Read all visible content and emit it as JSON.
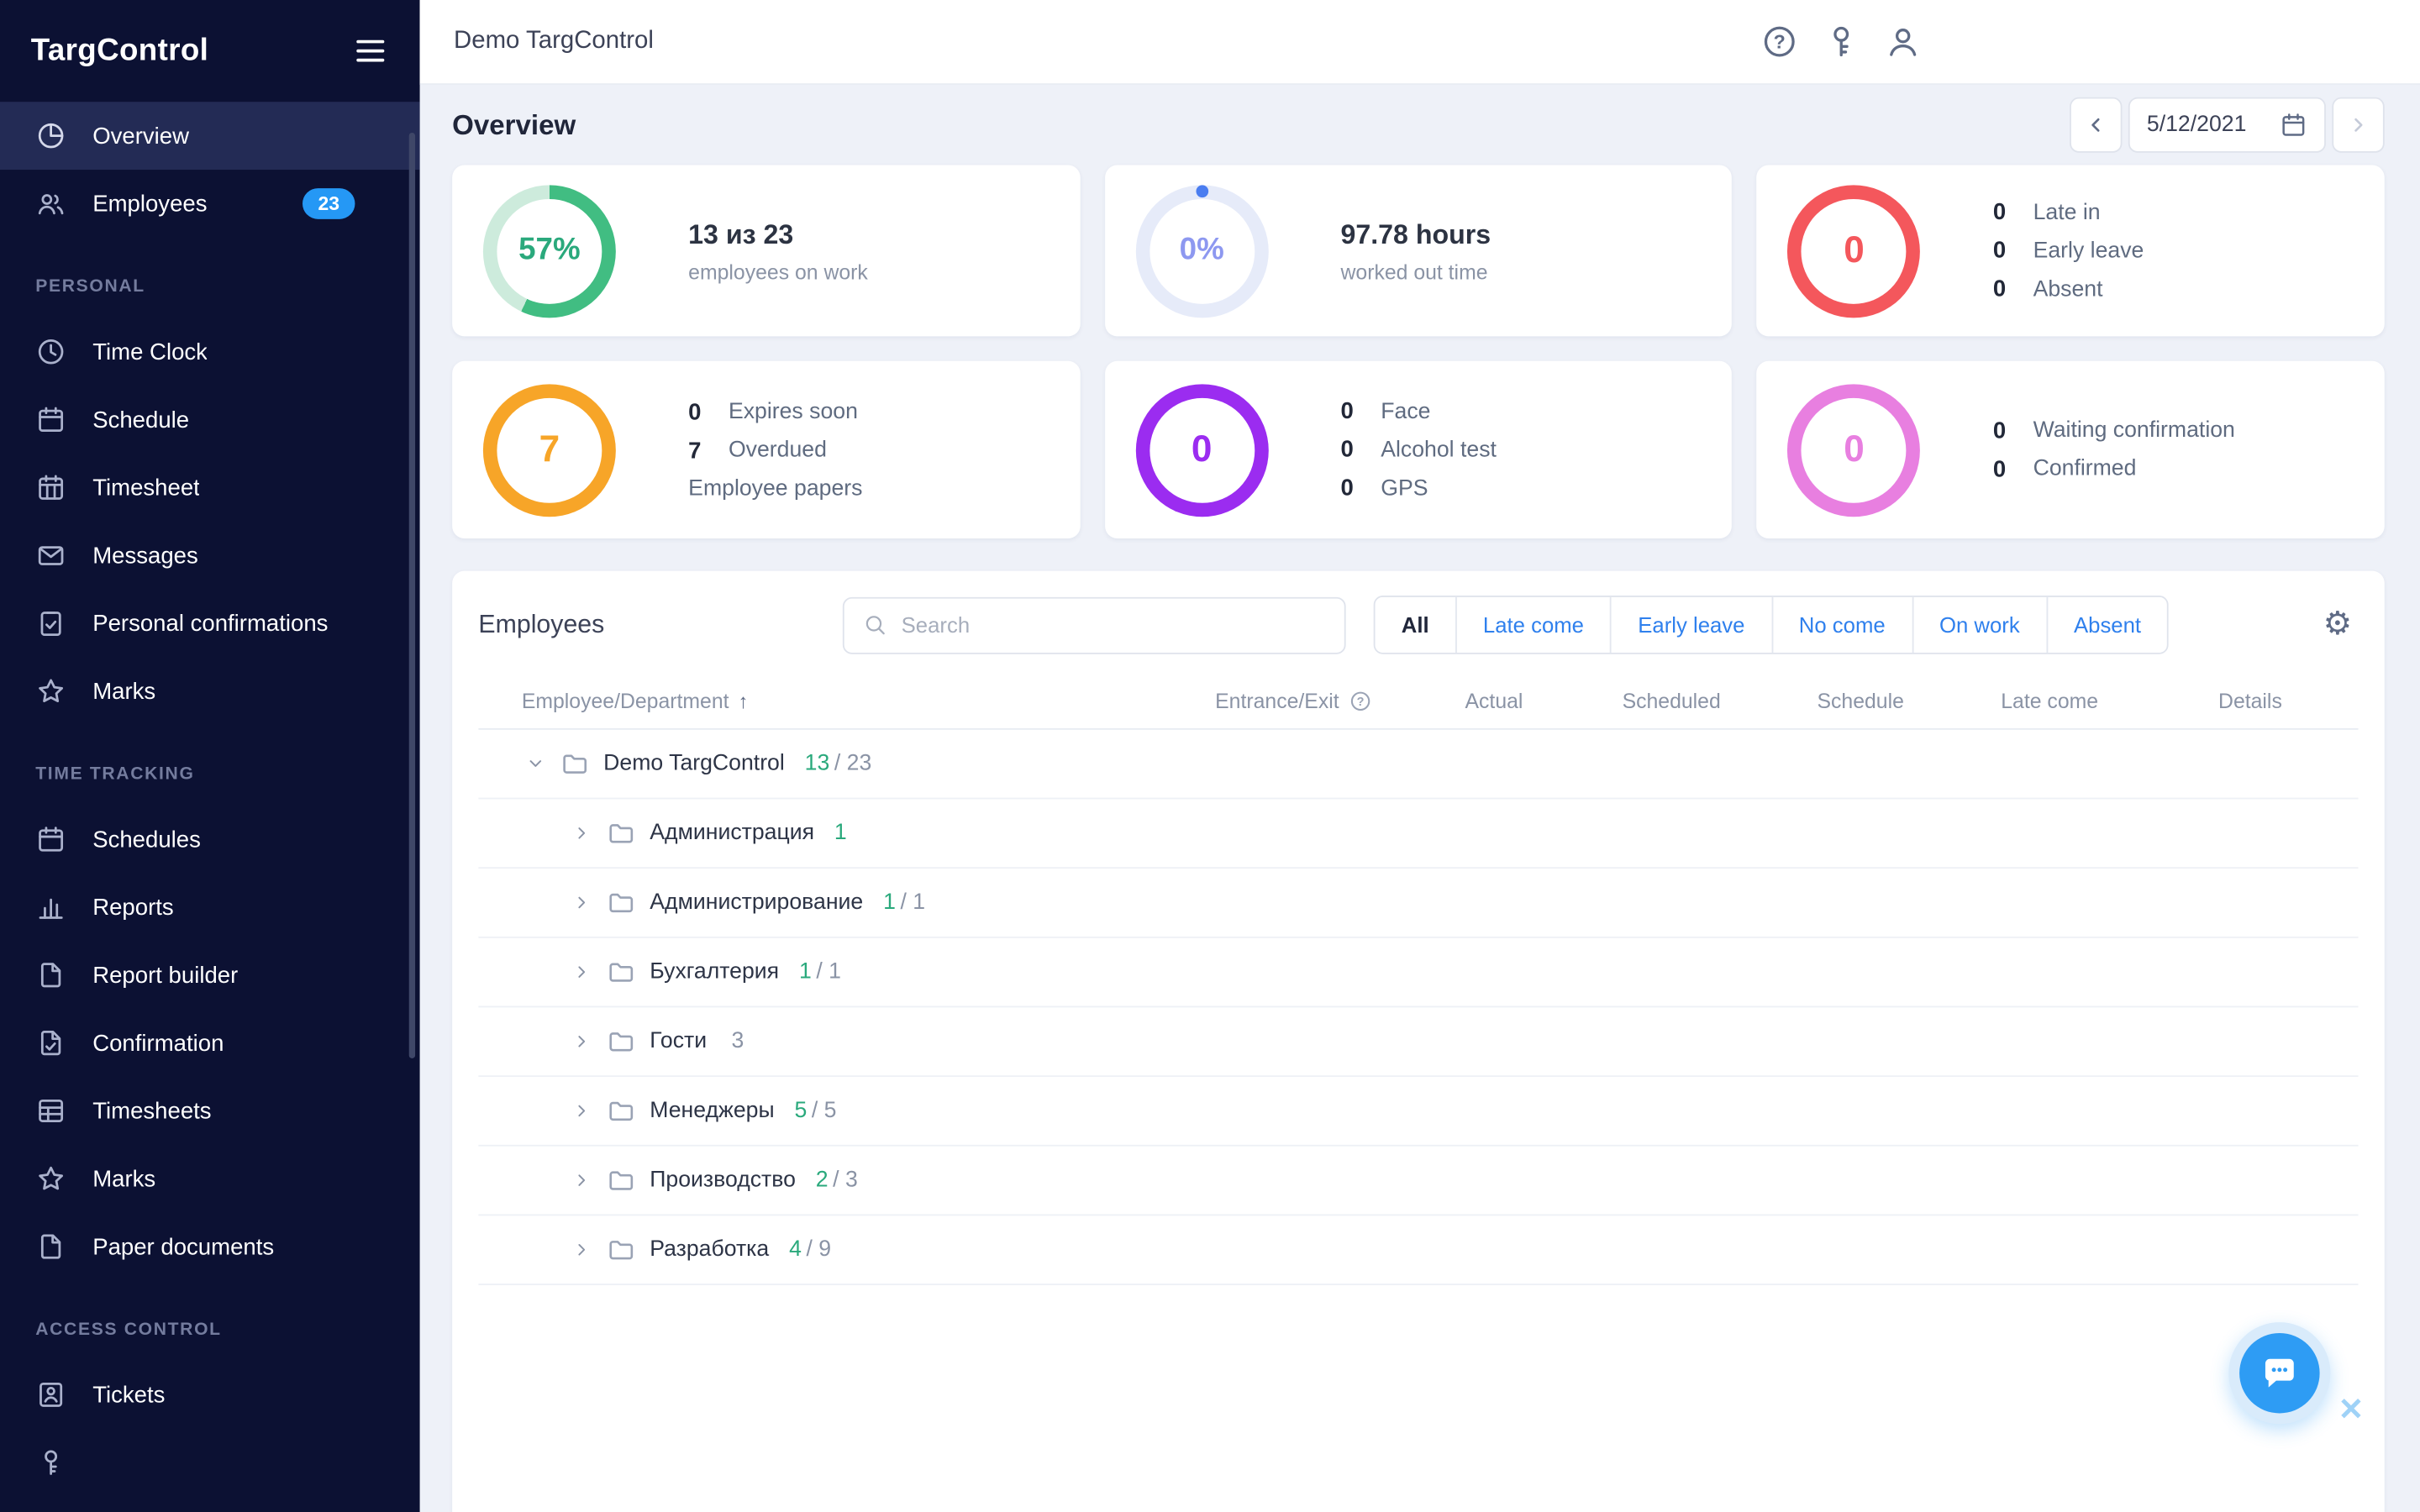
{
  "app": {
    "logo": "TargControl"
  },
  "topbar": {
    "title": "Demo TargControl",
    "icons": [
      "help",
      "key",
      "account"
    ]
  },
  "page": {
    "title": "Overview",
    "date": "5/12/2021"
  },
  "sidebar": {
    "items": [
      {
        "type": "item",
        "icon": "pie-chart",
        "label": "Overview",
        "active": true
      },
      {
        "type": "item",
        "icon": "users",
        "label": "Employees",
        "badge": "23"
      },
      {
        "type": "section",
        "label": "PERSONAL"
      },
      {
        "type": "item",
        "icon": "clock",
        "label": "Time Clock"
      },
      {
        "type": "item",
        "icon": "calendar",
        "label": "Schedule"
      },
      {
        "type": "item",
        "icon": "calendar-grid",
        "label": "Timesheet"
      },
      {
        "type": "item",
        "icon": "envelope",
        "label": "Messages"
      },
      {
        "type": "item",
        "icon": "clipboard-check",
        "label": "Personal confirmations"
      },
      {
        "type": "item",
        "icon": "star",
        "label": "Marks"
      },
      {
        "type": "section",
        "label": "TIME TRACKING"
      },
      {
        "type": "item",
        "icon": "calendar",
        "label": "Schedules"
      },
      {
        "type": "item",
        "icon": "bar-chart",
        "label": "Reports"
      },
      {
        "type": "item",
        "icon": "file",
        "label": "Report builder"
      },
      {
        "type": "item",
        "icon": "file-check",
        "label": "Confirmation"
      },
      {
        "type": "item",
        "icon": "table-grid",
        "label": "Timesheets"
      },
      {
        "type": "item",
        "icon": "star",
        "label": "Marks"
      },
      {
        "type": "item",
        "icon": "file",
        "label": "Paper documents"
      },
      {
        "type": "section",
        "label": "ACCESS CONTROL"
      },
      {
        "type": "item",
        "icon": "id-badge",
        "label": "Tickets"
      },
      {
        "type": "item",
        "icon": "key",
        "label": ""
      }
    ]
  },
  "stat_cards": [
    {
      "ring": {
        "value": "57%",
        "pct": 57,
        "color": "#41bd82",
        "track": "#cdebdc",
        "text_color": "#2aa97c"
      },
      "headline": "13 из 23",
      "subline": "employees on work"
    },
    {
      "ring": {
        "value": "0%",
        "pct": 0,
        "color": "#4a7df0",
        "track": "#e6ebf9",
        "text_color": "#8d98f0",
        "dot": true
      },
      "headline": "97.78 hours",
      "subline": "worked out time"
    },
    {
      "ring": {
        "value": "0",
        "pct": 100,
        "color": "#f4575c"
      },
      "stats": [
        {
          "value": "0",
          "label": "Late in"
        },
        {
          "value": "0",
          "label": "Early leave"
        },
        {
          "value": "0",
          "label": "Absent"
        }
      ]
    },
    {
      "ring": {
        "value": "7",
        "pct": 100,
        "color": "#f7a528"
      },
      "stats": [
        {
          "value": "0",
          "label": "Expires soon"
        },
        {
          "value": "7",
          "label": "Overdued"
        },
        {
          "value": "",
          "label": "Employee papers"
        }
      ]
    },
    {
      "ring": {
        "value": "0",
        "pct": 100,
        "color": "#9b2cf0"
      },
      "stats": [
        {
          "value": "0",
          "label": "Face"
        },
        {
          "value": "0",
          "label": "Alcohol test"
        },
        {
          "value": "0",
          "label": "GPS"
        }
      ]
    },
    {
      "ring": {
        "value": "0",
        "pct": 100,
        "color": "#e87fe0"
      },
      "stats": [
        {
          "value": "0",
          "label": "Waiting confirmation"
        },
        {
          "value": "0",
          "label": "Confirmed"
        }
      ]
    }
  ],
  "employees": {
    "title": "Employees",
    "search_placeholder": "Search",
    "filters": [
      {
        "label": "All",
        "active": true
      },
      {
        "label": "Late come"
      },
      {
        "label": "Early leave"
      },
      {
        "label": "No come"
      },
      {
        "label": "On work"
      },
      {
        "label": "Absent"
      }
    ],
    "columns": [
      {
        "label": "Employee/Department",
        "sort": true
      },
      {
        "label": "Entrance/Exit",
        "help": true
      },
      {
        "label": "Actual"
      },
      {
        "label": "Scheduled"
      },
      {
        "label": "Schedule"
      },
      {
        "label": "Late come"
      },
      {
        "label": "Details"
      }
    ],
    "rows": [
      {
        "level": 0,
        "expanded": true,
        "name": "Demo TargControl",
        "count_green": "13",
        "count_gray": "/ 23"
      },
      {
        "level": 1,
        "name": "Администрация",
        "count_green": "1",
        "count_gray": ""
      },
      {
        "level": 1,
        "name": "Администрирование",
        "count_green": "1",
        "count_gray": "/ 1"
      },
      {
        "level": 1,
        "name": "Бухгалтерия",
        "count_green": "1",
        "count_gray": "/ 1"
      },
      {
        "level": 1,
        "name": "Гости",
        "count_green": "",
        "count_gray": "3"
      },
      {
        "level": 1,
        "name": "Менеджеры",
        "count_green": "5",
        "count_gray": "/ 5"
      },
      {
        "level": 1,
        "name": "Производство",
        "count_green": "2",
        "count_gray": "/ 3"
      },
      {
        "level": 1,
        "name": "Разработка",
        "count_green": "4",
        "count_gray": "/ 9"
      }
    ]
  }
}
